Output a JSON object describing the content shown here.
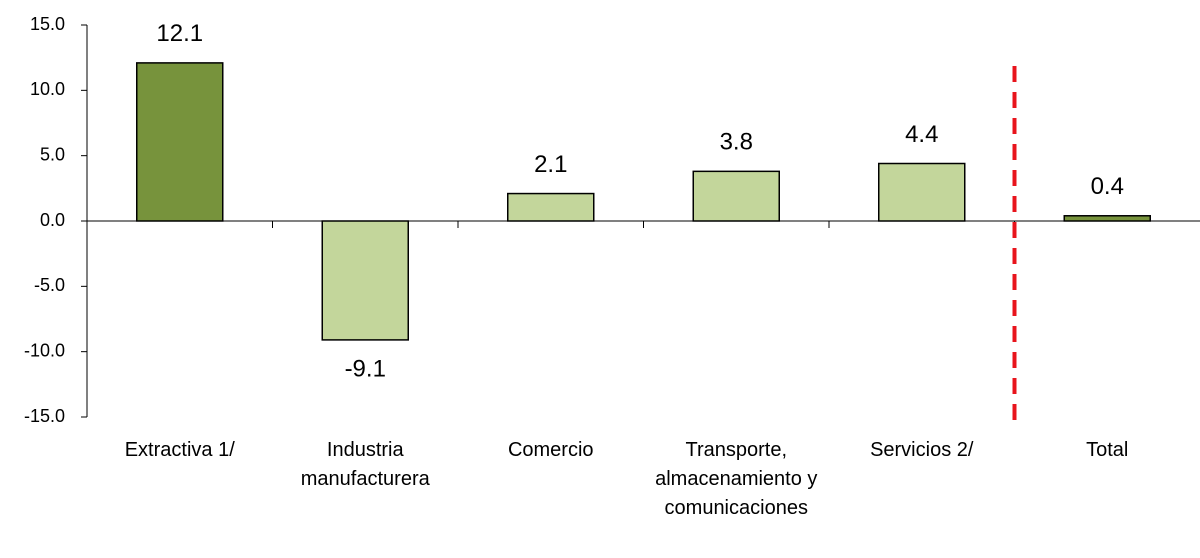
{
  "chart_data": {
    "type": "bar",
    "categories": [
      "Extractiva 1/",
      "Industria manufacturera",
      "Comercio",
      "Transporte, almacenamiento y comunicaciones",
      "Servicios 2/",
      "Total"
    ],
    "values": [
      12.1,
      -9.1,
      2.1,
      3.8,
      4.4,
      0.4
    ],
    "colors": [
      "#77933c",
      "#c3d69b",
      "#c3d69b",
      "#c3d69b",
      "#c3d69b",
      "#77933c"
    ],
    "ylim": [
      -15,
      15
    ],
    "yticks": [
      {
        "value": -15,
        "label": "-15.0"
      },
      {
        "value": -10,
        "label": "-10.0"
      },
      {
        "value": -5,
        "label": "-5.0"
      },
      {
        "value": 0,
        "label": "0.0"
      },
      {
        "value": 5,
        "label": "5.0"
      },
      {
        "value": 10,
        "label": "10.0"
      },
      {
        "value": 15,
        "label": "15.0"
      }
    ],
    "grid": false
  }
}
